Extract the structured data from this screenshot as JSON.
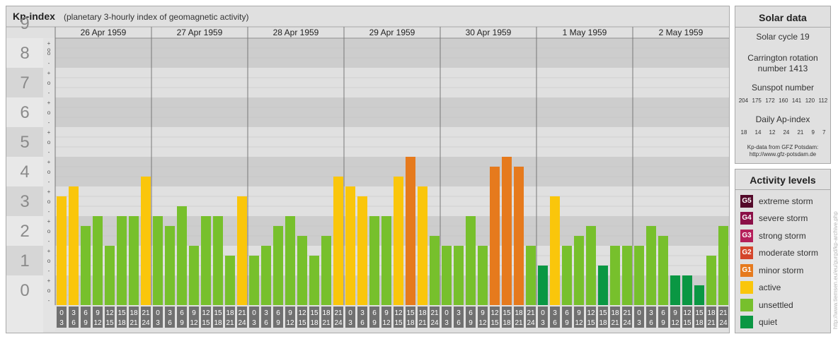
{
  "chart_data": {
    "type": "bar",
    "title": "Kp-index",
    "subtitle": "(planetary 3-hourly index of geomagnetic activity)",
    "y_tick_labels": [
      "0",
      "1",
      "2",
      "3",
      "4",
      "5",
      "6",
      "7",
      "8",
      "9"
    ],
    "minor_tick_marks": [
      "-",
      "o",
      "+"
    ],
    "ylim": [
      0,
      9
    ],
    "days": [
      "26 Apr 1959",
      "27 Apr 1959",
      "28 Apr 1959",
      "29 Apr 1959",
      "30 Apr 1959",
      "1 May 1959",
      "2 May 1959"
    ],
    "intervals": [
      {
        "start": "0",
        "end": "3"
      },
      {
        "start": "3",
        "end": "6"
      },
      {
        "start": "6",
        "end": "9"
      },
      {
        "start": "9",
        "end": "12"
      },
      {
        "start": "12",
        "end": "15"
      },
      {
        "start": "15",
        "end": "18"
      },
      {
        "start": "18",
        "end": "21"
      },
      {
        "start": "21",
        "end": "24"
      }
    ],
    "values": [
      3.667,
      4.0,
      2.667,
      3.0,
      2.0,
      3.0,
      3.0,
      4.333,
      3.0,
      2.667,
      3.333,
      2.0,
      3.0,
      3.0,
      1.667,
      3.667,
      1.667,
      2.0,
      2.667,
      3.0,
      2.333,
      1.667,
      2.333,
      4.333,
      4.0,
      3.667,
      3.0,
      3.0,
      4.333,
      5.0,
      4.0,
      2.333,
      2.0,
      2.0,
      3.0,
      2.0,
      4.667,
      5.0,
      4.667,
      2.0,
      1.333,
      3.667,
      2.0,
      2.333,
      2.667,
      1.333,
      2.0,
      2.0,
      2.0,
      2.667,
      2.333,
      1.0,
      1.0,
      0.667,
      1.667,
      2.667
    ],
    "colors": {
      "quiet": "#0a9743",
      "unsettled": "#77c02c",
      "active": "#fac60b",
      "minor_storm": "#e67a1d",
      "moderate_storm": "#d4452b",
      "strong_storm": "#b51f5a",
      "severe_storm": "#8b0f47",
      "extreme_storm": "#540a2a"
    }
  },
  "solar": {
    "heading": "Solar data",
    "cycle": "Solar cycle 19",
    "carrington_1": "Carrington rotation",
    "carrington_2": "number 1413",
    "sunspot_label": "Sunspot number",
    "sunspot_values": [
      "204",
      "175",
      "172",
      "160",
      "141",
      "120",
      "112"
    ],
    "ap_label": "Daily Ap-index",
    "ap_values": [
      "18",
      "14",
      "12",
      "24",
      "21",
      "9",
      "7"
    ],
    "credit_1": "Kp-data from GFZ Potsdam:",
    "credit_2": "http://www.gfz-potsdam.de"
  },
  "levels": {
    "heading": "Activity levels",
    "items": [
      {
        "code": "G5",
        "label": "extreme storm",
        "color": "#540a2a"
      },
      {
        "code": "G4",
        "label": "severe storm",
        "color": "#8b0f47"
      },
      {
        "code": "G3",
        "label": "strong storm",
        "color": "#b51f5a"
      },
      {
        "code": "G2",
        "label": "moderate storm",
        "color": "#d4452b"
      },
      {
        "code": "G1",
        "label": "minor storm",
        "color": "#e67a1d"
      },
      {
        "code": "",
        "label": "active",
        "color": "#fac60b"
      },
      {
        "code": "",
        "label": "unsettled",
        "color": "#77c02c"
      },
      {
        "code": "",
        "label": "quiet",
        "color": "#0a9743"
      }
    ]
  },
  "watermark": "http://www.tiemsen.eu/eu/gurgd/kp-archive.php"
}
